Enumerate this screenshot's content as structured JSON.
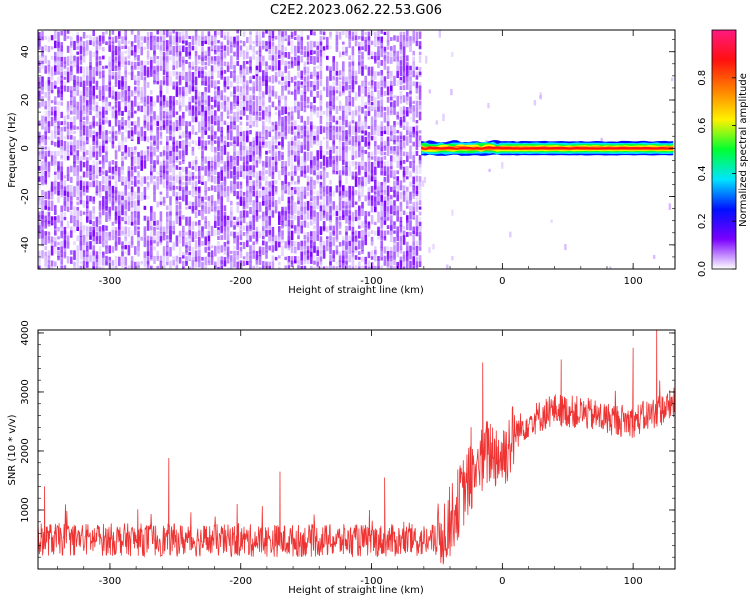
{
  "title": "C2E2.2023.062.22.53.G06",
  "chart_data": [
    {
      "type": "heatmap",
      "xlabel": "Height of straight line (km)",
      "ylabel": "Frequency (Hz)",
      "xlim": [
        -355,
        132
      ],
      "ylim": [
        -50,
        49
      ],
      "x_ticks": [
        -300,
        -200,
        -100,
        0,
        100
      ],
      "y_ticks": [
        -40,
        -20,
        0,
        20,
        40
      ],
      "colorbar": {
        "label": "Normalized spectral amplitude",
        "range": [
          0,
          1
        ],
        "ticks": [
          "0.0",
          "0.2",
          "0.4",
          "0.6",
          "0.8"
        ],
        "colors": [
          "#ffffff",
          "#7a00ff",
          "#0010ff",
          "#00e5ff",
          "#00ff30",
          "#fff200",
          "#ff8000",
          "#ff1010",
          "#ff1a80"
        ]
      },
      "regions": [
        {
          "x_range": [
            -355,
            -62
          ],
          "freq_range": [
            -50,
            49
          ],
          "amplitude": 0.08,
          "note_color": "#7a00ff"
        },
        {
          "x_range": [
            -62,
            132
          ],
          "center_freq_hz": 0,
          "amplitude": 0.9,
          "half_width_hz": 2
        }
      ]
    },
    {
      "type": "line",
      "xlabel": "Height of straight line (km)",
      "ylabel": "SNR (10 * v/v)",
      "xlim": [
        -355,
        132
      ],
      "ylim": [
        0,
        4050
      ],
      "x_ticks": [
        -300,
        -200,
        -100,
        0,
        100
      ],
      "y_ticks": [
        1000,
        2000,
        3000,
        4000
      ],
      "color": "#ee3333",
      "trend": {
        "x": [
          -355,
          -300,
          -200,
          -100,
          -50,
          -40,
          -30,
          -20,
          -10,
          0,
          10,
          20,
          40,
          60,
          80,
          100,
          132
        ],
        "y": [
          500,
          500,
          480,
          480,
          480,
          800,
          1300,
          1700,
          2000,
          1900,
          2300,
          2500,
          2700,
          2650,
          2550,
          2500,
          2800
        ]
      },
      "spikes": [
        {
          "x": -350,
          "y": 1400
        },
        {
          "x": -255,
          "y": 1880
        },
        {
          "x": -170,
          "y": 1650
        },
        {
          "x": -90,
          "y": 1550
        },
        {
          "x": -15,
          "y": 3500
        },
        {
          "x": 45,
          "y": 3550
        },
        {
          "x": 100,
          "y": 3750
        },
        {
          "x": 118,
          "y": 4050
        }
      ],
      "noise_amplitude": 280
    }
  ]
}
